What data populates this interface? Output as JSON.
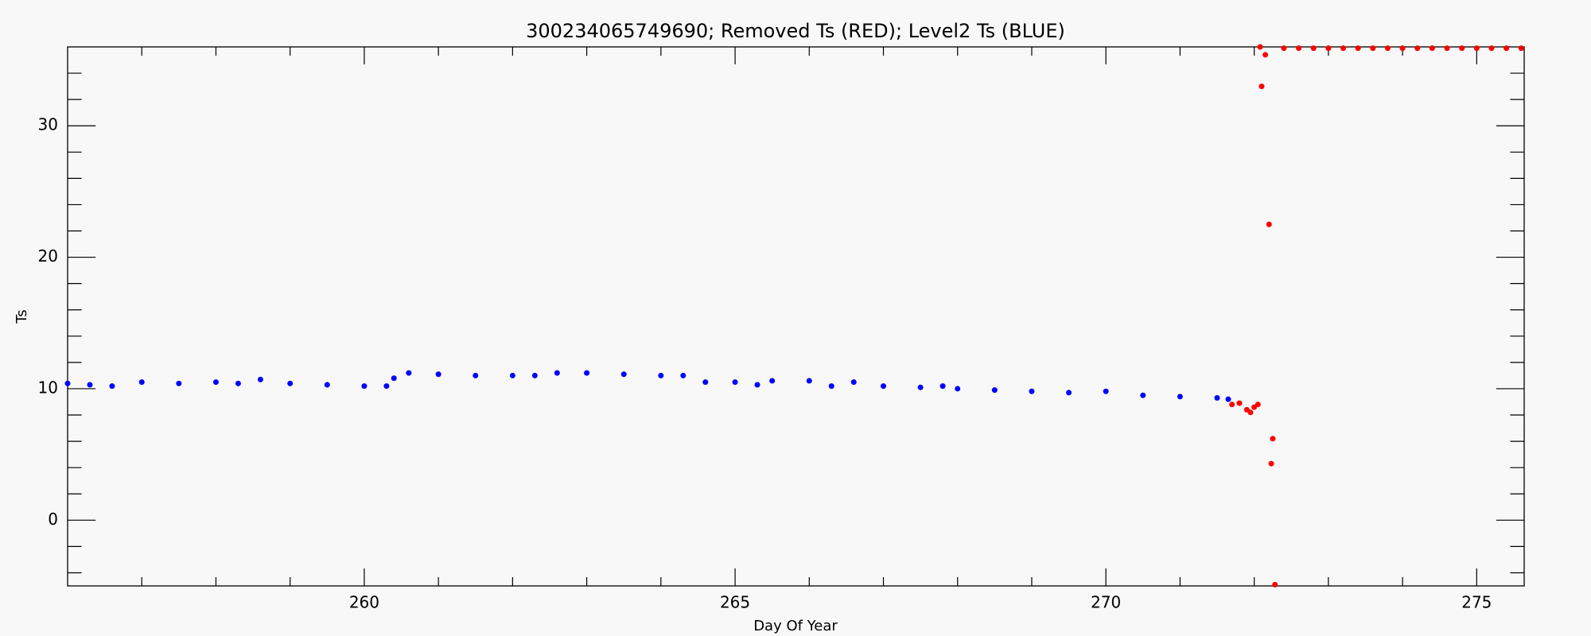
{
  "chart_data": {
    "type": "scatter",
    "title": "300234065749690; Removed Ts (RED); Level2 Ts (BLUE)",
    "xlabel": "Day Of Year",
    "ylabel": "Ts",
    "xlim": [
      256,
      275.64
    ],
    "ylim": [
      -5,
      36
    ],
    "xticks": [
      260,
      265,
      270,
      275
    ],
    "yticks": [
      0,
      10,
      20,
      30
    ],
    "xminorticks": [
      257,
      258,
      259,
      261,
      262,
      263,
      264,
      266,
      267,
      268,
      269,
      271,
      272,
      273,
      274
    ],
    "yminorticks": [
      -4,
      -2,
      2,
      4,
      6,
      8,
      12,
      14,
      16,
      18,
      22,
      24,
      26,
      28,
      32,
      34
    ],
    "series": [
      {
        "name": "Level2 Ts",
        "color": "#0000ff",
        "x": [
          256.0,
          256.3,
          256.6,
          257.0,
          257.5,
          258.0,
          258.3,
          258.6,
          259.0,
          259.5,
          260.0,
          260.3,
          260.4,
          260.6,
          261.0,
          261.5,
          262.0,
          262.3,
          262.6,
          263.0,
          263.5,
          264.0,
          264.3,
          264.6,
          265.0,
          265.3,
          265.5,
          266.0,
          266.3,
          266.6,
          267.0,
          267.5,
          267.8,
          268.0,
          268.5,
          269.0,
          269.5,
          270.0,
          270.5,
          271.0,
          271.5,
          271.65
        ],
        "values": [
          10.4,
          10.3,
          10.2,
          10.5,
          10.4,
          10.5,
          10.4,
          10.7,
          10.4,
          10.3,
          10.2,
          10.2,
          10.8,
          11.2,
          11.1,
          11.0,
          11.0,
          11.0,
          11.2,
          11.2,
          11.1,
          11.0,
          11.0,
          10.5,
          10.5,
          10.3,
          10.6,
          10.6,
          10.2,
          10.5,
          10.2,
          10.1,
          10.2,
          10.0,
          9.9,
          9.8,
          9.7,
          9.8,
          9.5,
          9.4,
          9.3,
          9.2
        ]
      },
      {
        "name": "Removed Ts",
        "color": "#ff0000",
        "x": [
          271.7,
          271.8,
          271.9,
          271.95,
          272.0,
          272.05,
          272.08,
          272.1,
          272.15,
          272.2,
          272.23,
          272.25,
          272.28,
          272.4,
          272.6,
          272.8,
          273.0,
          273.2,
          273.4,
          273.6,
          273.8,
          274.0,
          274.2,
          274.4,
          274.6,
          274.8,
          275.0,
          275.2,
          275.4,
          275.6
        ],
        "values": [
          8.8,
          8.9,
          8.4,
          8.2,
          8.6,
          8.8,
          36.0,
          33.0,
          35.4,
          22.5,
          4.3,
          6.2,
          -4.9,
          35.9,
          35.9,
          35.9,
          35.9,
          35.9,
          35.9,
          35.9,
          35.9,
          35.9,
          35.9,
          35.9,
          35.9,
          35.9,
          35.9,
          35.9,
          35.9,
          35.9
        ]
      }
    ]
  }
}
